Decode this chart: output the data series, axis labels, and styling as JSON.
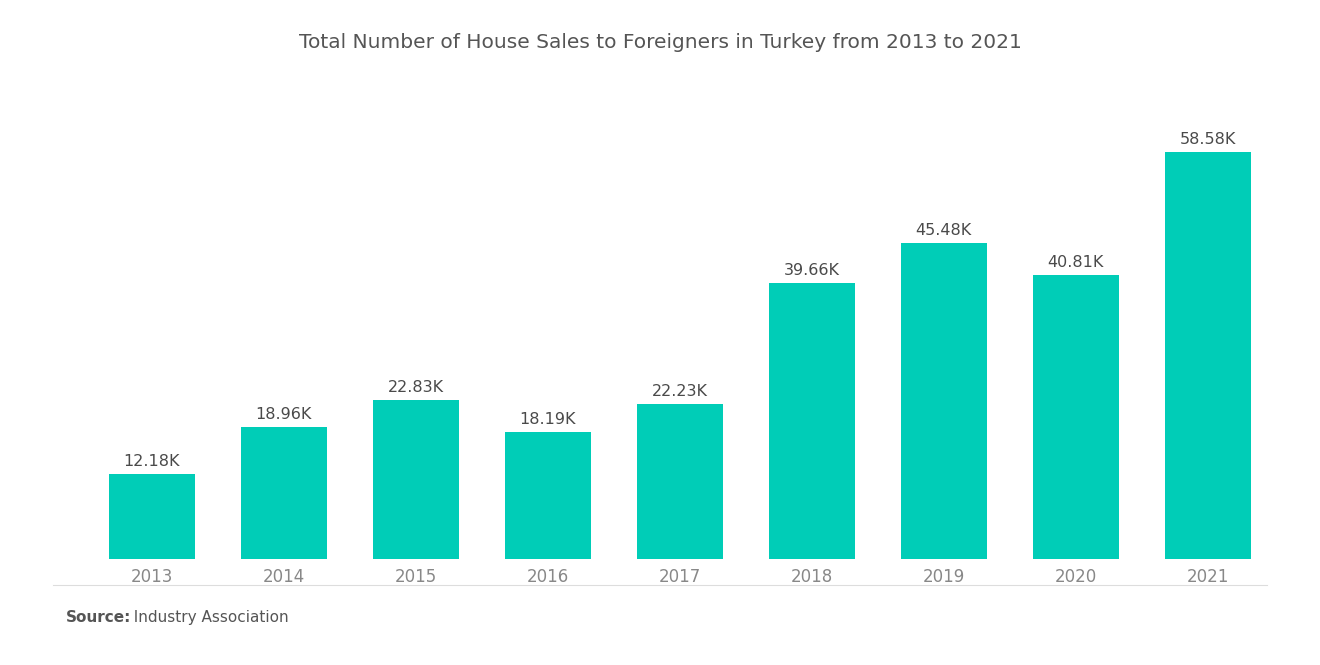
{
  "title": "Total Number of House Sales to Foreigners in Turkey from 2013 to 2021",
  "years": [
    "2013",
    "2014",
    "2015",
    "2016",
    "2017",
    "2018",
    "2019",
    "2020",
    "2021"
  ],
  "values": [
    12.18,
    18.96,
    22.83,
    18.19,
    22.23,
    39.66,
    45.48,
    40.81,
    58.58
  ],
  "labels": [
    "12.18K",
    "18.96K",
    "22.83K",
    "18.19K",
    "22.23K",
    "39.66K",
    "45.48K",
    "40.81K",
    "58.58K"
  ],
  "bar_color": "#00CDB7",
  "background_color": "#ffffff",
  "title_color": "#555555",
  "label_color": "#4a4a4a",
  "tick_color": "#888888",
  "source_bold": "Source:",
  "source_text": "  Industry Association",
  "ylim": [
    0,
    68
  ],
  "title_fontsize": 14.5,
  "label_fontsize": 11.5,
  "tick_fontsize": 12,
  "source_fontsize": 11,
  "bar_width": 0.65
}
